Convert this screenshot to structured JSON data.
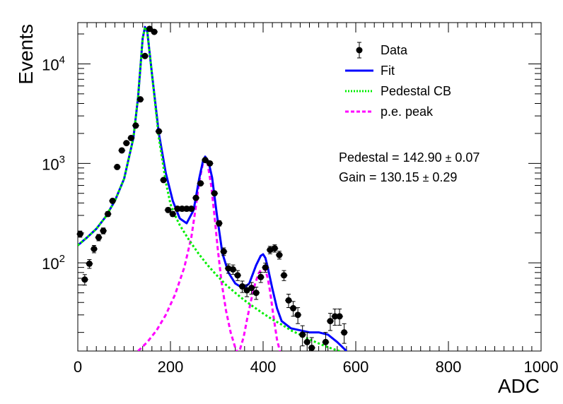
{
  "chart_data": {
    "type": "scatter",
    "title": "",
    "xlabel": "ADC",
    "ylabel": "Events",
    "xlim": [
      0,
      1000
    ],
    "ylim": [
      13,
      26000
    ],
    "ylog": true,
    "grid": false,
    "legend_position": "top-right",
    "x_tick_labels": [
      "0",
      "200",
      "400",
      "600",
      "800",
      "1000"
    ],
    "x_tick_values": [
      0,
      200,
      400,
      600,
      800,
      1000
    ],
    "y_tick_labels": [
      {
        "base": "10",
        "exp": "2",
        "value": 100
      },
      {
        "base": "10",
        "exp": "3",
        "value": 1000
      },
      {
        "base": "10",
        "exp": "4",
        "value": 10000
      }
    ],
    "legend": [
      {
        "label": "Data",
        "style": "marker",
        "color": "#000000"
      },
      {
        "label": "Fit",
        "style": "solid",
        "color": "#0000ff"
      },
      {
        "label": "Pedestal CB",
        "style": "dotted",
        "color": "#00ff00"
      },
      {
        "label": "p.e. peak",
        "style": "dashed",
        "color": "#ff00ff"
      }
    ],
    "annotations": [
      {
        "text": "Pedestal = 142.90",
        "pm": "±",
        "err": "0.07"
      },
      {
        "text": "Gain = 130.15",
        "pm": "±",
        "err": "0.29"
      }
    ],
    "colors": {
      "data": "#000000",
      "fit": "#0000ff",
      "pedestal": "#00ee00",
      "pe": "#ff00ff"
    },
    "series": [
      {
        "name": "Data",
        "kind": "points",
        "x": [
          5,
          15,
          25,
          35,
          45,
          55,
          65,
          75,
          85,
          95,
          105,
          115,
          125,
          135,
          145,
          155,
          165,
          175,
          185,
          195,
          205,
          215,
          225,
          235,
          245,
          255,
          265,
          275,
          285,
          295,
          305,
          315,
          325,
          335,
          345,
          355,
          365,
          375,
          385,
          395,
          405,
          415,
          425,
          435,
          445,
          455,
          465,
          475,
          485,
          495,
          505,
          535,
          545,
          555,
          565,
          575
        ],
        "y": [
          195,
          68,
          98,
          138,
          180,
          210,
          310,
          420,
          920,
          1350,
          1600,
          1800,
          2400,
          4400,
          12000,
          22500,
          21000,
          2100,
          680,
          340,
          310,
          350,
          350,
          350,
          350,
          450,
          630,
          1080,
          1000,
          500,
          250,
          130,
          88,
          86,
          75,
          58,
          53,
          56,
          50,
          72,
          90,
          135,
          140,
          120,
          75,
          42,
          35,
          30,
          19,
          16,
          14,
          16,
          26,
          29,
          29,
          20
        ]
      },
      {
        "name": "Fit",
        "kind": "curve",
        "x": [
          0,
          20,
          40,
          60,
          80,
          100,
          120,
          130,
          140,
          145,
          150,
          160,
          175,
          190,
          205,
          220,
          235,
          250,
          262,
          270,
          275,
          282,
          290,
          300,
          312,
          325,
          340,
          350,
          360,
          370,
          385,
          395,
          400,
          405,
          410,
          420,
          430,
          440,
          460,
          480,
          500,
          520,
          540,
          560,
          580
        ],
        "y": [
          150,
          180,
          220,
          290,
          420,
          700,
          1800,
          4600,
          18000,
          23500,
          21000,
          8000,
          2000,
          800,
          420,
          280,
          250,
          340,
          700,
          1050,
          1170,
          1050,
          720,
          310,
          125,
          80,
          62,
          58,
          57,
          62,
          95,
          118,
          122,
          112,
          90,
          55,
          35,
          26,
          22,
          21,
          20,
          20,
          19,
          16,
          13
        ]
      },
      {
        "name": "Pedestal CB",
        "kind": "curve",
        "x": [
          0,
          20,
          40,
          60,
          80,
          100,
          120,
          130,
          140,
          145,
          150,
          160,
          175,
          190,
          200,
          210,
          220,
          240,
          260,
          280,
          300,
          320,
          340,
          360,
          380,
          400,
          420,
          440,
          460,
          480,
          500,
          520,
          540,
          560,
          580,
          600
        ],
        "y": [
          150,
          180,
          220,
          290,
          420,
          700,
          1800,
          4600,
          18000,
          23500,
          21000,
          7900,
          1800,
          650,
          390,
          300,
          240,
          170,
          125,
          95,
          75,
          60,
          50,
          42,
          36,
          31,
          27,
          24,
          21,
          19,
          17,
          15.5,
          14.2,
          13.2,
          12.3,
          11.5
        ]
      },
      {
        "name": "p.e. peak",
        "kind": "curve",
        "x": [
          130,
          150,
          170,
          190,
          210,
          230,
          245,
          255,
          262,
          270,
          275,
          280,
          288,
          295,
          302,
          310,
          320,
          330,
          340,
          345,
          350,
          358,
          366,
          374,
          382,
          390,
          396,
          400,
          405,
          410,
          415,
          422,
          430,
          438,
          445
        ],
        "y": [
          13,
          16,
          21,
          30,
          48,
          90,
          180,
          370,
          650,
          1000,
          1120,
          1000,
          600,
          300,
          140,
          65,
          33,
          20,
          14,
          12.5,
          13.5,
          18,
          28,
          42,
          60,
          78,
          86,
          88,
          84,
          70,
          52,
          30,
          17,
          12,
          10
        ]
      }
    ]
  }
}
